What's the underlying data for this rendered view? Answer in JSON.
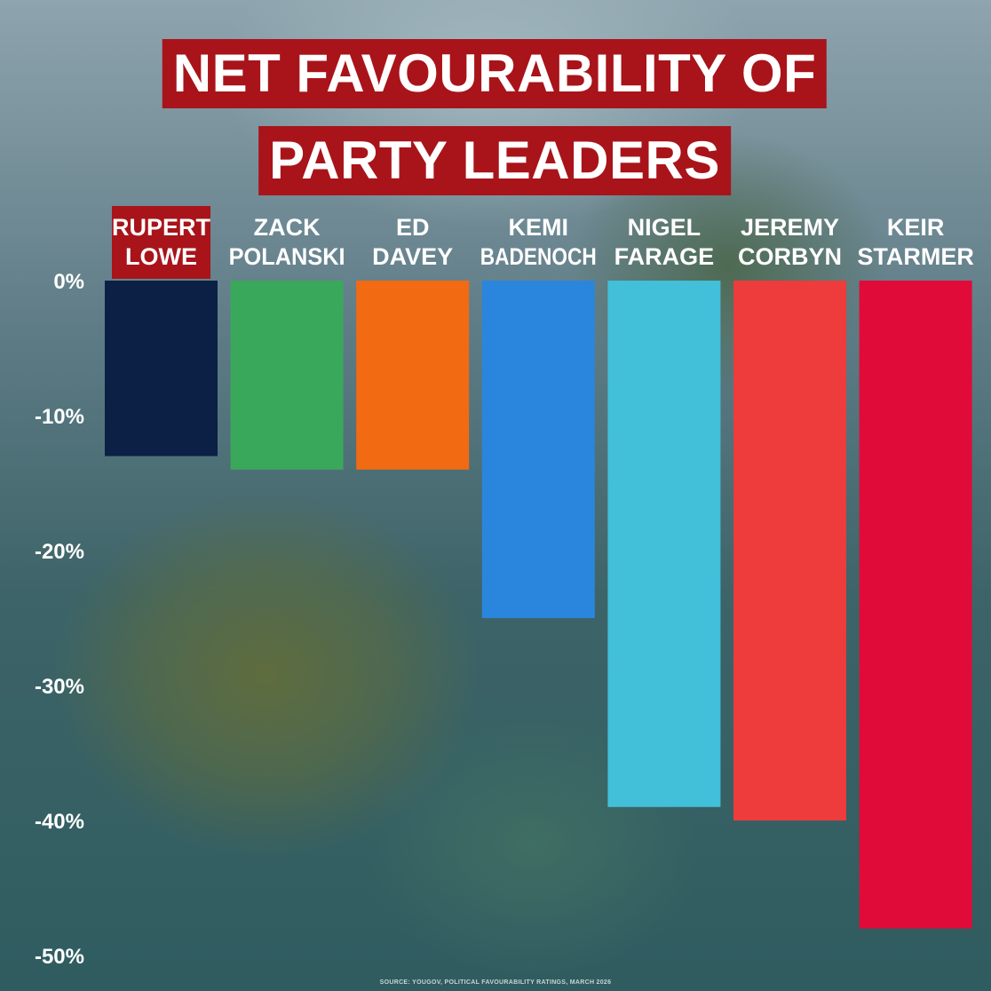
{
  "title": {
    "line1": "NET FAVOURABILITY OF",
    "line2": "PARTY LEADERS"
  },
  "source": "SOURCE: YOUGOV, POLITICAL FAVOURABILITY RATINGS, MARCH 2026",
  "chart_data": {
    "type": "bar",
    "title": "NET FAVOURABILITY OF PARTY LEADERS",
    "categories": [
      [
        "RUPERT",
        "LOWE"
      ],
      [
        "ZACK",
        "POLANSKI"
      ],
      [
        "ED",
        "DAVEY"
      ],
      [
        "KEMI",
        "BADENOCH"
      ],
      [
        "NIGEL",
        "FARAGE"
      ],
      [
        "JEREMY",
        "CORBYN"
      ],
      [
        "KEIR",
        "STARMER"
      ]
    ],
    "values": [
      -13,
      -14,
      -14,
      -25,
      -39,
      -40,
      -48
    ],
    "colors": [
      "#0c1f45",
      "#3aa85b",
      "#f26a12",
      "#2a86dd",
      "#42bfd9",
      "#ee3b3b",
      "#e10b3a"
    ],
    "highlight_category_index": 0,
    "highlight_color": "#a8141a",
    "ylim": [
      -50,
      0
    ],
    "yticks": [
      0,
      -10,
      -20,
      -30,
      -40,
      -50
    ],
    "ytick_labels": [
      "0%",
      "-10%",
      "-20%",
      "-30%",
      "-40%",
      "-50%"
    ],
    "xlabel": "",
    "ylabel": "",
    "grid": false
  }
}
